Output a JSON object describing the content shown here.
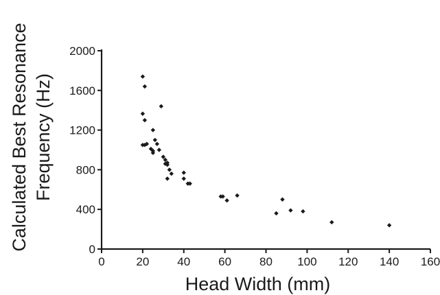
{
  "chart_data": {
    "type": "scatter",
    "title": "",
    "xlabel": "Head Width (mm)",
    "ylabel_lines": [
      "Calculated Best Resonance",
      "Frequency (Hz)"
    ],
    "xlim": [
      0,
      160
    ],
    "ylim": [
      0,
      2000
    ],
    "x_ticks": [
      0,
      20,
      40,
      60,
      80,
      100,
      120,
      140,
      160
    ],
    "y_ticks": [
      0,
      400,
      800,
      1200,
      1600,
      2000
    ],
    "x_tick_labels": [
      "0",
      "20",
      "40",
      "60",
      "80",
      "100",
      "120",
      "140",
      "160"
    ],
    "y_tick_labels": [
      "0",
      "400",
      "800",
      "1200",
      "1600",
      "2000"
    ],
    "grid": false,
    "legend": "none",
    "marker_color": "#1a1a1a",
    "series": [
      {
        "x": [
          20,
          21,
          20,
          21,
          20,
          21,
          22,
          25,
          26,
          27,
          28,
          29,
          24,
          25,
          25,
          30,
          31,
          32,
          31,
          32,
          33,
          34,
          32,
          40,
          40,
          42,
          43,
          58,
          59,
          61,
          66,
          85,
          88,
          92,
          98,
          112,
          140
        ],
        "y": [
          1740,
          1640,
          1365,
          1300,
          1050,
          1050,
          1060,
          1200,
          1100,
          1060,
          1000,
          1440,
          1010,
          990,
          970,
          930,
          900,
          870,
          860,
          850,
          800,
          760,
          710,
          770,
          710,
          660,
          660,
          530,
          530,
          490,
          540,
          360,
          500,
          390,
          380,
          270,
          240
        ]
      }
    ]
  }
}
